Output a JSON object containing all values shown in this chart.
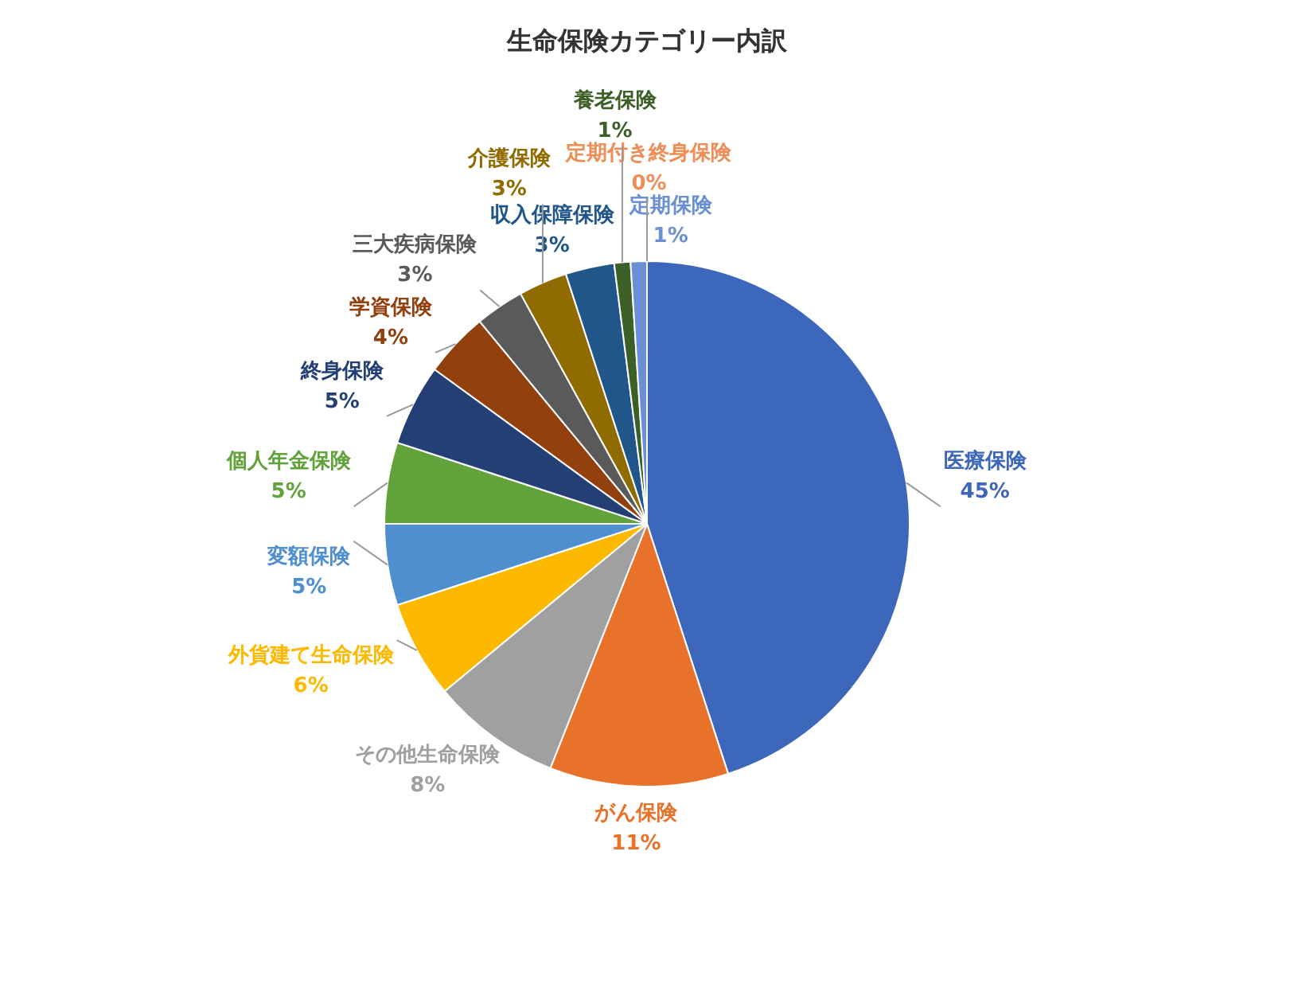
{
  "chart_data": {
    "type": "pie",
    "title": "生命保険カテゴリー内訳",
    "categories": [
      "医療保険",
      "がん保険",
      "その他生命保険",
      "外貨建て生命保険",
      "変額保険",
      "個人年金保険",
      "終身保険",
      "学資保険",
      "三大疾病保険",
      "介護保険",
      "収入保障保険",
      "養老保険",
      "定期保険",
      "定期付き終身保険"
    ],
    "values": [
      45,
      11,
      8,
      6,
      5,
      5,
      5,
      4,
      3,
      3,
      3,
      1,
      1,
      0
    ],
    "colors": [
      "#3d67bb",
      "#e8722a",
      "#a0a0a0",
      "#fdb800",
      "#4f8fd0",
      "#62a23a",
      "#233f74",
      "#93400f",
      "#5a5a5a",
      "#8f6b00",
      "#21568a",
      "#3d6028",
      "#6a8fd2",
      "#ee8d55"
    ],
    "value_labels": [
      "45%",
      "11%",
      "8%",
      "6%",
      "5%",
      "5%",
      "5%",
      "4%",
      "3%",
      "3%",
      "3%",
      "1%",
      "1%",
      "0%"
    ],
    "legend": false
  }
}
